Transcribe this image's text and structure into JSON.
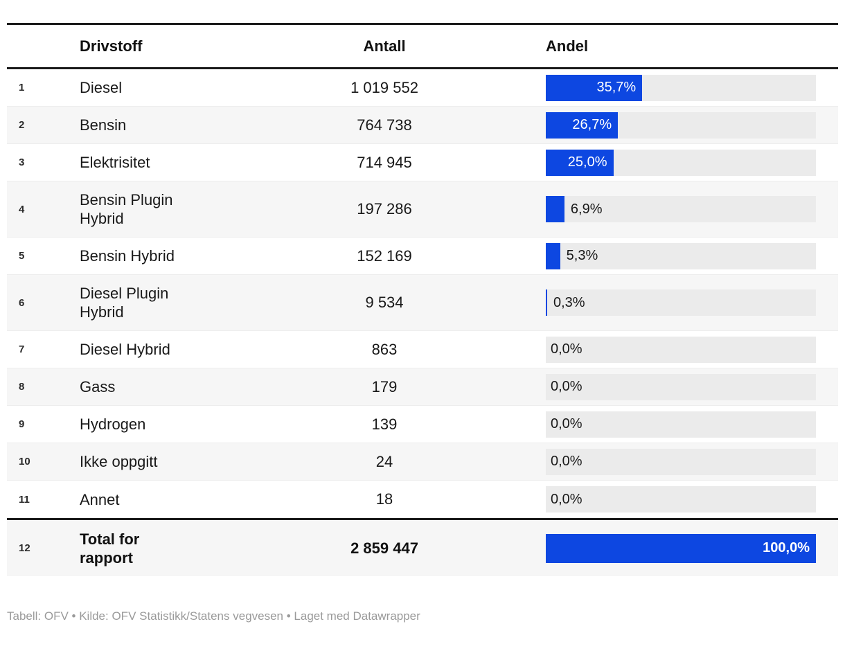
{
  "header": {
    "drivstoff": "Drivstoff",
    "antall": "Antall",
    "andel": "Andel"
  },
  "rows": [
    {
      "index": "1",
      "name": "Diesel",
      "antall": "1 019 552",
      "share_label": "35,7%",
      "share_pct": 35.7,
      "is_total": false
    },
    {
      "index": "2",
      "name": "Bensin",
      "antall": "764 738",
      "share_label": "26,7%",
      "share_pct": 26.7,
      "is_total": false
    },
    {
      "index": "3",
      "name": "Elektrisitet",
      "antall": "714 945",
      "share_label": "25,0%",
      "share_pct": 25.0,
      "is_total": false
    },
    {
      "index": "4",
      "name": "Bensin Plugin Hybrid",
      "antall": "197 286",
      "share_label": "6,9%",
      "share_pct": 6.9,
      "is_total": false
    },
    {
      "index": "5",
      "name": "Bensin Hybrid",
      "antall": "152 169",
      "share_label": "5,3%",
      "share_pct": 5.3,
      "is_total": false
    },
    {
      "index": "6",
      "name": "Diesel Plugin Hybrid",
      "antall": "9 534",
      "share_label": "0,3%",
      "share_pct": 0.3,
      "is_total": false
    },
    {
      "index": "7",
      "name": "Diesel Hybrid",
      "antall": "863",
      "share_label": "0,0%",
      "share_pct": 0.0,
      "is_total": false
    },
    {
      "index": "8",
      "name": "Gass",
      "antall": "179",
      "share_label": "0,0%",
      "share_pct": 0.0,
      "is_total": false
    },
    {
      "index": "9",
      "name": "Hydrogen",
      "antall": "139",
      "share_label": "0,0%",
      "share_pct": 0.0,
      "is_total": false
    },
    {
      "index": "10",
      "name": "Ikke oppgitt",
      "antall": "24",
      "share_label": "0,0%",
      "share_pct": 0.0,
      "is_total": false
    },
    {
      "index": "11",
      "name": "Annet",
      "antall": "18",
      "share_label": "0,0%",
      "share_pct": 0.0,
      "is_total": false
    },
    {
      "index": "12",
      "name": "Total for rapport",
      "antall": "2 859 447",
      "share_label": "100,0%",
      "share_pct": 100.0,
      "is_total": true
    }
  ],
  "footer": {
    "text": "Tabell: OFV • Kilde: OFV Statistikk/Statens vegvesen • Laget med Datawrapper"
  },
  "colors": {
    "bar_fill": "#0d47e1",
    "bar_track": "#ebebeb",
    "zebra_row": "#f6f6f6",
    "rule": "#1a1a1a",
    "row_separator": "#ededed",
    "text": "#191919",
    "footer_text": "#9a9a9a"
  },
  "chart_data": {
    "type": "table",
    "title": "",
    "columns": [
      "Drivstoff",
      "Antall",
      "Andel"
    ],
    "rows": [
      [
        "Diesel",
        1019552,
        35.7
      ],
      [
        "Bensin",
        764738,
        26.7
      ],
      [
        "Elektrisitet",
        714945,
        25.0
      ],
      [
        "Bensin Plugin Hybrid",
        197286,
        6.9
      ],
      [
        "Bensin Hybrid",
        152169,
        5.3
      ],
      [
        "Diesel Plugin Hybrid",
        9534,
        0.3
      ],
      [
        "Diesel Hybrid",
        863,
        0.0
      ],
      [
        "Gass",
        179,
        0.0
      ],
      [
        "Hydrogen",
        139,
        0.0
      ],
      [
        "Ikke oppgitt",
        24,
        0.0
      ],
      [
        "Annet",
        18,
        0.0
      ],
      [
        "Total for rapport",
        2859447,
        100.0
      ]
    ],
    "bar_column": "Andel",
    "bar_range": [
      0,
      100
    ],
    "notes": "Andel column rendered as horizontal bars; labels inside bar when share >= 20%, otherwise dark label beside bar"
  }
}
